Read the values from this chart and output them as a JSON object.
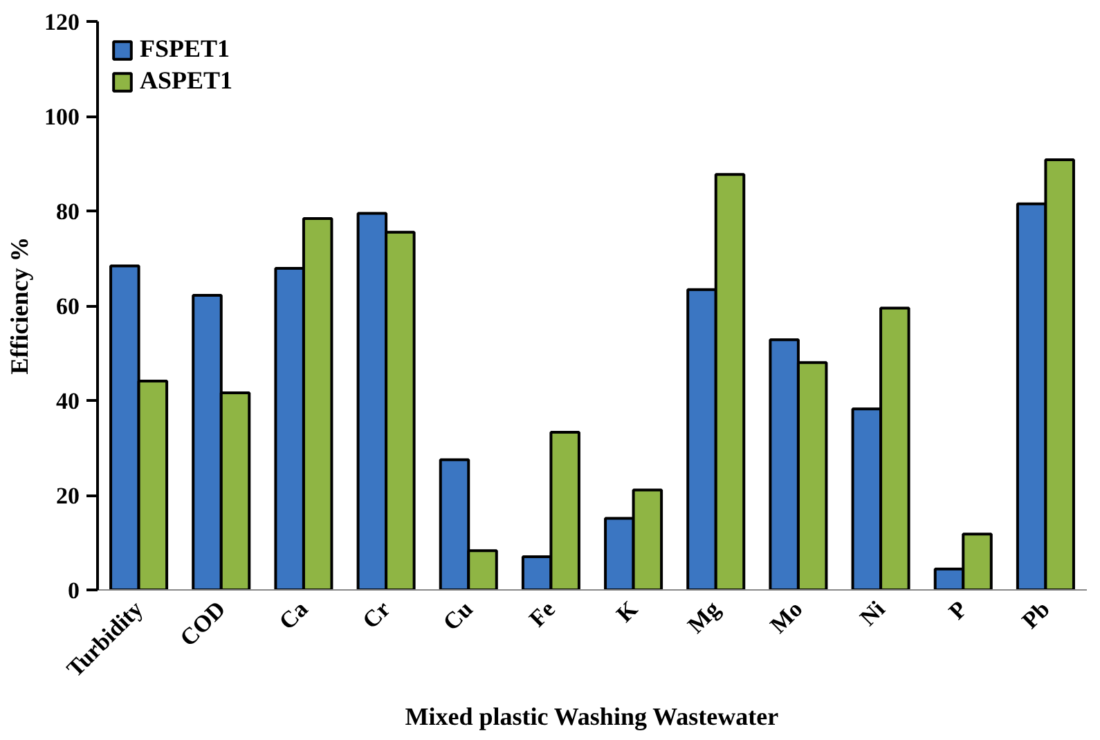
{
  "chart_data": {
    "type": "bar",
    "xlabel": "Mixed plastic Washing Wastewater",
    "ylabel": "Efficiency %",
    "categories": [
      "Turbidity",
      "COD",
      "Ca",
      "Cr",
      "Cu",
      "Fe",
      "K",
      "Mg",
      "Mo",
      "Ni",
      "P",
      "Pb"
    ],
    "series": [
      {
        "name": "FSPET1",
        "color": "#3b76c2",
        "values": [
          68.4,
          62.2,
          67.9,
          79.5,
          27.5,
          7.0,
          15.1,
          63.4,
          52.8,
          38.2,
          4.4,
          81.5
        ]
      },
      {
        "name": "ASPET1",
        "color": "#8fb544",
        "values": [
          44.1,
          41.6,
          78.4,
          75.5,
          8.3,
          33.3,
          21.1,
          87.7,
          48.0,
          59.5,
          11.8,
          90.8
        ]
      }
    ],
    "ylim": [
      0,
      120
    ],
    "yticks": [
      0,
      20,
      40,
      60,
      80,
      100,
      120
    ],
    "grid": false,
    "legend": "top left"
  }
}
